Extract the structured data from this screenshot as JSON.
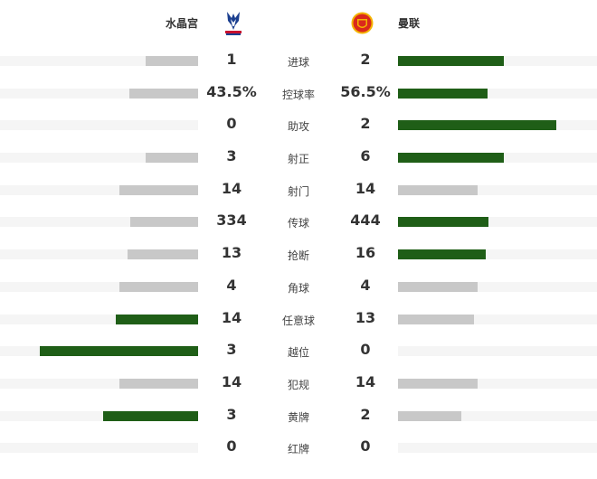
{
  "home": {
    "name": "水晶宫",
    "logo": "crystal-palace-crest"
  },
  "away": {
    "name": "曼联",
    "logo": "manchester-united-crest"
  },
  "colors": {
    "winner_bar": "#1f5e17",
    "other_bar": "#c8c8c8",
    "track": "#f5f5f5"
  },
  "stats": [
    {
      "label": "进球",
      "home": "1",
      "away": "2"
    },
    {
      "label": "控球率",
      "home": "43.5%",
      "away": "56.5%"
    },
    {
      "label": "助攻",
      "home": "0",
      "away": "2"
    },
    {
      "label": "射正",
      "home": "3",
      "away": "6"
    },
    {
      "label": "射门",
      "home": "14",
      "away": "14"
    },
    {
      "label": "传球",
      "home": "334",
      "away": "444"
    },
    {
      "label": "抢断",
      "home": "13",
      "away": "16"
    },
    {
      "label": "角球",
      "home": "4",
      "away": "4"
    },
    {
      "label": "任意球",
      "home": "14",
      "away": "13"
    },
    {
      "label": "越位",
      "home": "3",
      "away": "0"
    },
    {
      "label": "犯规",
      "home": "14",
      "away": "14"
    },
    {
      "label": "黄牌",
      "home": "3",
      "away": "2"
    },
    {
      "label": "红牌",
      "home": "0",
      "away": "0"
    }
  ]
}
